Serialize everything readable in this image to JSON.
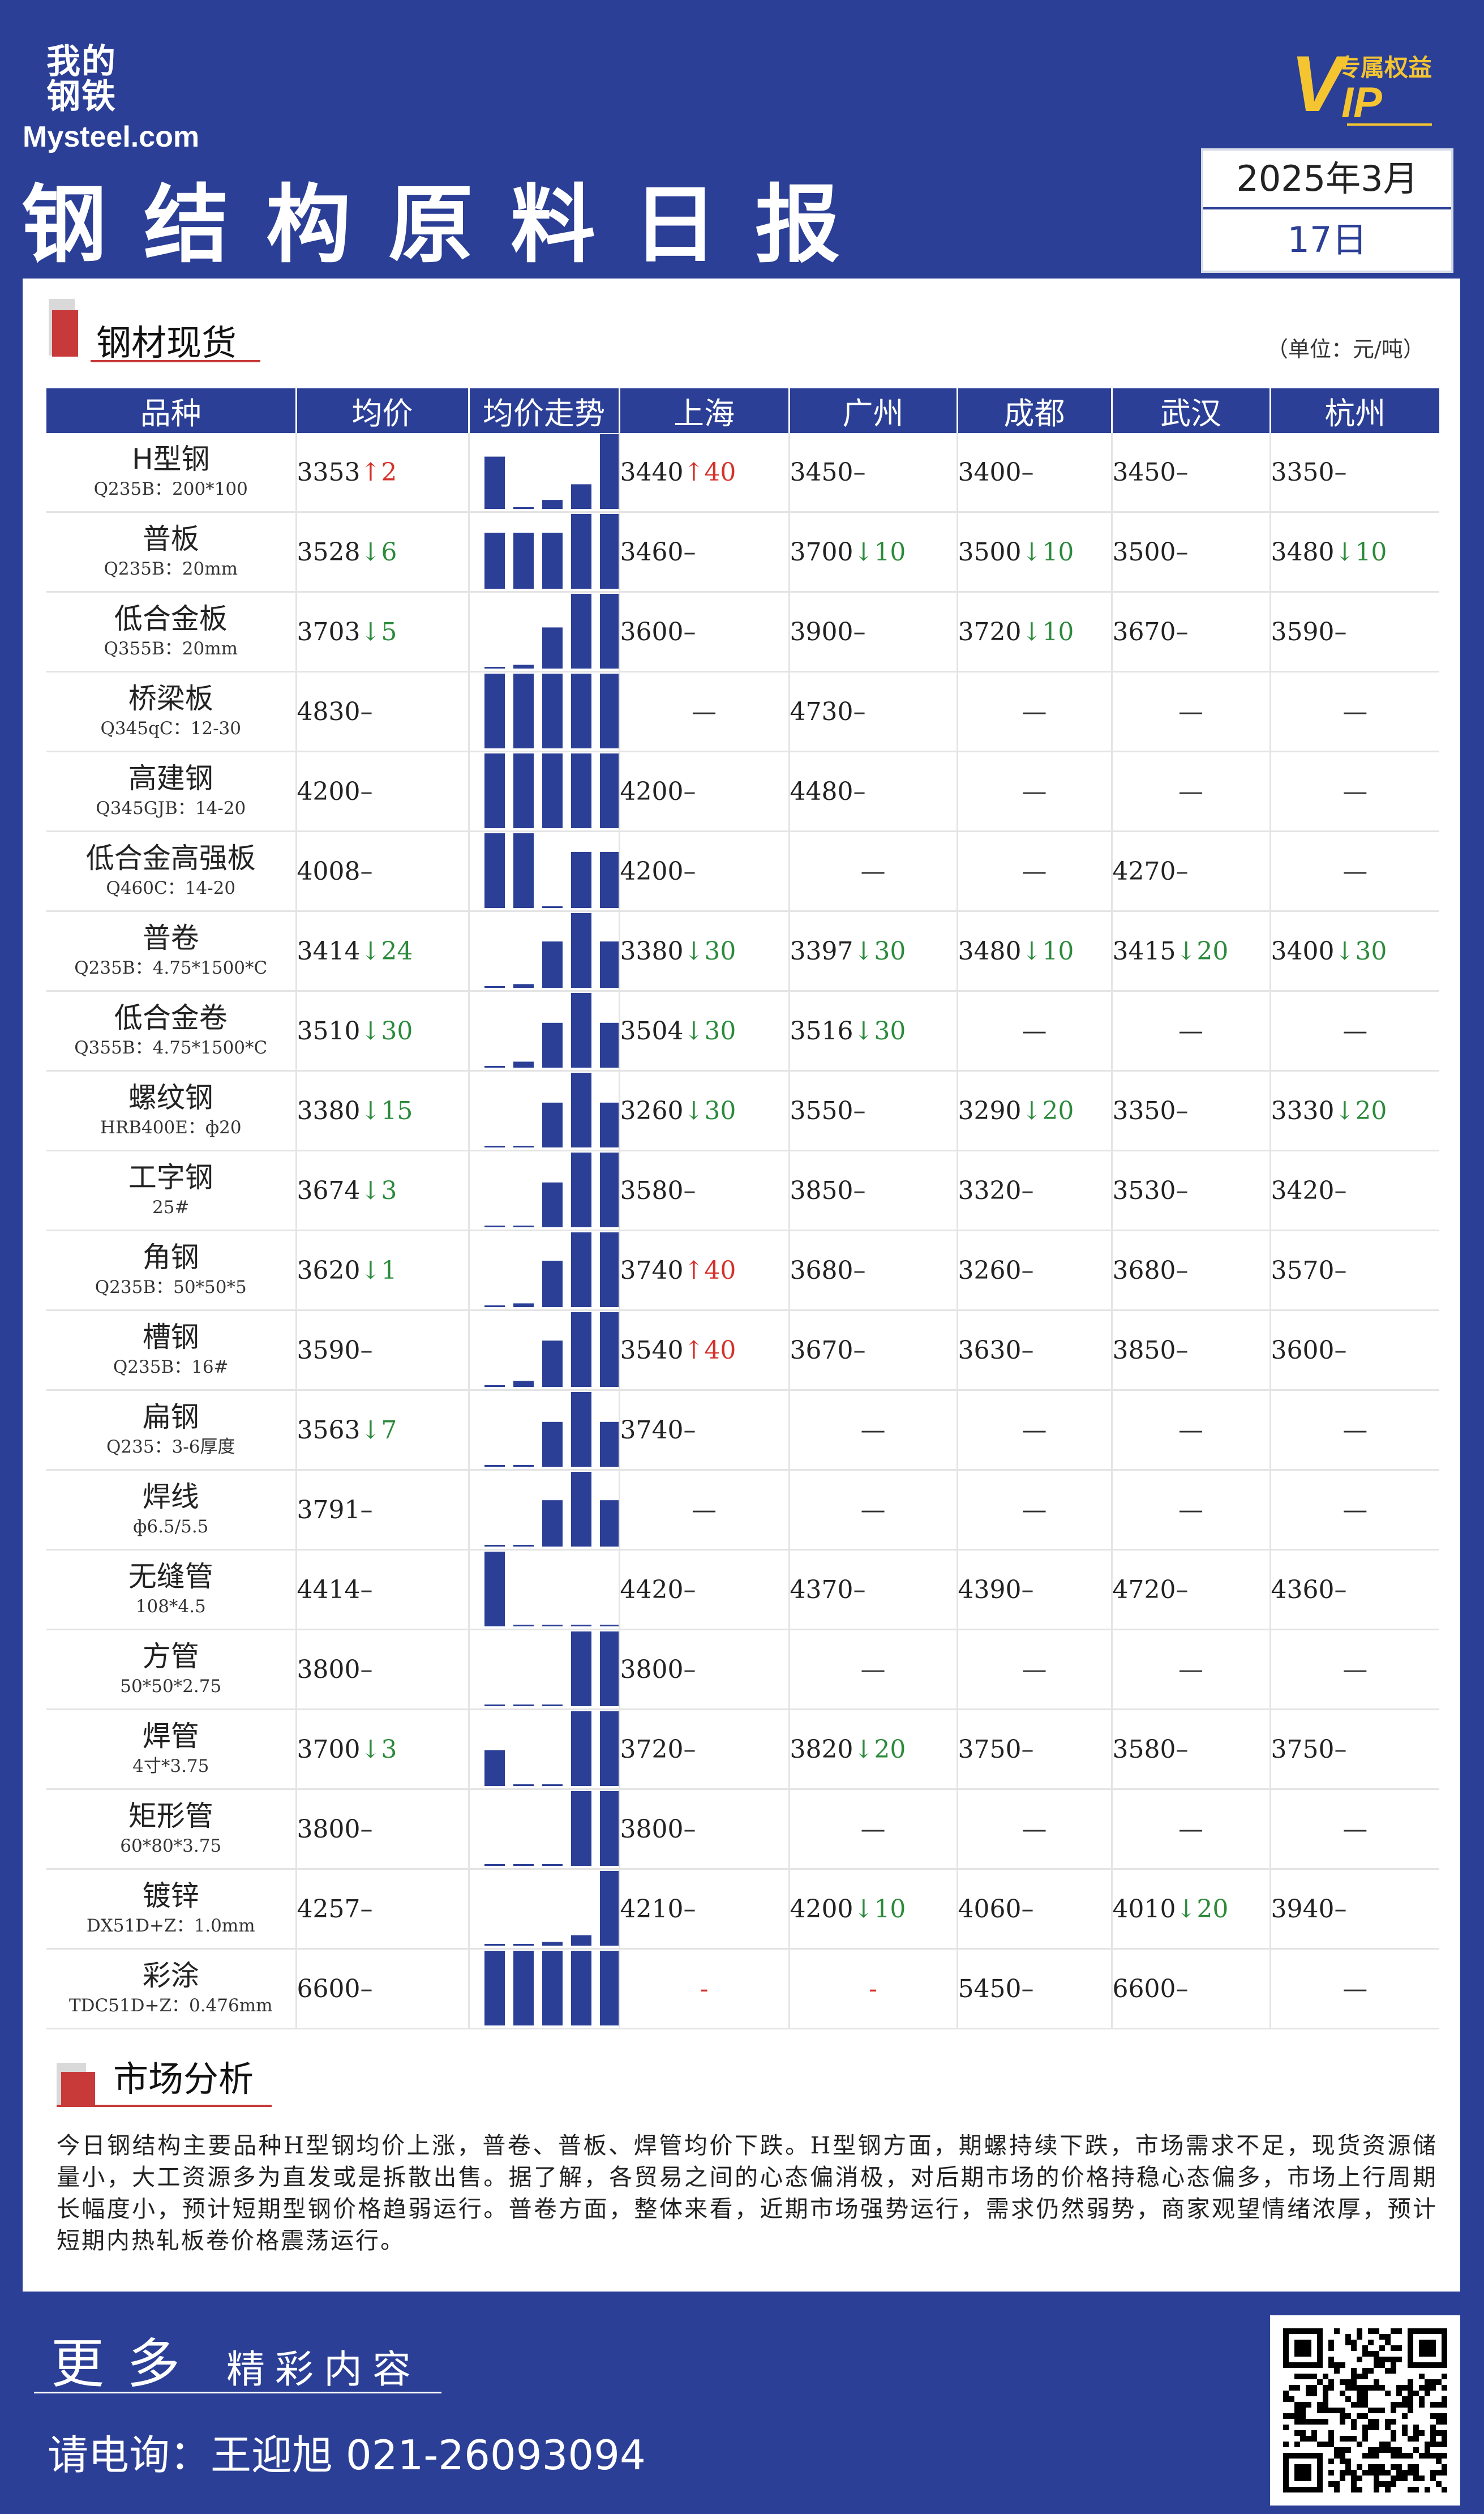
{
  "header": {
    "logo_cn": "我的钢铁",
    "logo_en": "Mysteel.com",
    "vip_letter": "V",
    "vip_ip": "IP",
    "vip_text": "专属权益",
    "title": "钢结构原料日报",
    "date_line1": "2025年3月",
    "date_line2": "17日"
  },
  "steel_section": {
    "title": "钢材现货",
    "unit": "（单位：元/吨）",
    "columns": [
      "品种",
      "均价",
      "均价走势",
      "上海",
      "广州",
      "成都",
      "武汉",
      "杭州"
    ],
    "rows": [
      {
        "name": "H型钢",
        "spec": "Q235B：200*100",
        "avg": {
          "v": "3353",
          "d": "up",
          "c": "2"
        },
        "trend": [
          0.7,
          0.02,
          0.12,
          0.33,
          1.0
        ],
        "cells": [
          {
            "v": "3440",
            "d": "up",
            "c": "40"
          },
          {
            "v": "3450",
            "d": "",
            "c": ""
          },
          {
            "v": "3400",
            "d": "",
            "c": ""
          },
          {
            "v": "3450",
            "d": "",
            "c": ""
          },
          {
            "v": "3350",
            "d": "",
            "c": ""
          }
        ]
      },
      {
        "name": "普板",
        "spec": "Q235B：20mm",
        "avg": {
          "v": "3528",
          "d": "down",
          "c": "6"
        },
        "trend": [
          0.75,
          0.75,
          0.75,
          1.0,
          1.0
        ],
        "cells": [
          {
            "v": "3460",
            "d": "",
            "c": ""
          },
          {
            "v": "3700",
            "d": "down",
            "c": "10"
          },
          {
            "v": "3500",
            "d": "down",
            "c": "10"
          },
          {
            "v": "3500",
            "d": "",
            "c": ""
          },
          {
            "v": "3480",
            "d": "down",
            "c": "10"
          }
        ]
      },
      {
        "name": "低合金板",
        "spec": "Q355B：20mm",
        "avg": {
          "v": "3703",
          "d": "down",
          "c": "5"
        },
        "trend": [
          0.02,
          0.05,
          0.55,
          1.0,
          1.0
        ],
        "cells": [
          {
            "v": "3600",
            "d": "",
            "c": ""
          },
          {
            "v": "3900",
            "d": "",
            "c": ""
          },
          {
            "v": "3720",
            "d": "down",
            "c": "10"
          },
          {
            "v": "3670",
            "d": "",
            "c": ""
          },
          {
            "v": "3590",
            "d": "",
            "c": ""
          }
        ]
      },
      {
        "name": "桥梁板",
        "spec": "Q345qC：12-30",
        "avg": {
          "v": "4830",
          "d": "",
          "c": ""
        },
        "trend": [
          1.0,
          1.0,
          1.0,
          1.0,
          1.0
        ],
        "cells": [
          {
            "v": "",
            "d": "",
            "c": ""
          },
          {
            "v": "4730",
            "d": "",
            "c": ""
          },
          {
            "v": "",
            "d": "",
            "c": ""
          },
          {
            "v": "",
            "d": "",
            "c": ""
          },
          {
            "v": "",
            "d": "",
            "c": ""
          }
        ]
      },
      {
        "name": "高建钢",
        "spec": "Q345GJB：14-20",
        "avg": {
          "v": "4200",
          "d": "",
          "c": ""
        },
        "trend": [
          1.0,
          1.0,
          1.0,
          1.0,
          1.0
        ],
        "cells": [
          {
            "v": "4200",
            "d": "",
            "c": ""
          },
          {
            "v": "4480",
            "d": "",
            "c": ""
          },
          {
            "v": "",
            "d": "",
            "c": ""
          },
          {
            "v": "",
            "d": "",
            "c": ""
          },
          {
            "v": "",
            "d": "",
            "c": ""
          }
        ]
      },
      {
        "name": "低合金高强板",
        "spec": "Q460C：14-20",
        "avg": {
          "v": "4008",
          "d": "",
          "c": ""
        },
        "trend": [
          1.0,
          1.0,
          0.02,
          0.75,
          0.75
        ],
        "cells": [
          {
            "v": "4200",
            "d": "",
            "c": ""
          },
          {
            "v": "",
            "d": "",
            "c": ""
          },
          {
            "v": "",
            "d": "",
            "c": ""
          },
          {
            "v": "4270",
            "d": "",
            "c": ""
          },
          {
            "v": "",
            "d": "",
            "c": ""
          }
        ]
      },
      {
        "name": "普卷",
        "spec": "Q235B：4.75*1500*C",
        "avg": {
          "v": "3414",
          "d": "down",
          "c": "24"
        },
        "trend": [
          0.02,
          0.05,
          0.62,
          1.0,
          0.62
        ],
        "cells": [
          {
            "v": "3380",
            "d": "down",
            "c": "30"
          },
          {
            "v": "3397",
            "d": "down",
            "c": "30"
          },
          {
            "v": "3480",
            "d": "down",
            "c": "10"
          },
          {
            "v": "3415",
            "d": "down",
            "c": "20"
          },
          {
            "v": "3400",
            "d": "down",
            "c": "30"
          }
        ]
      },
      {
        "name": "低合金卷",
        "spec": "Q355B：4.75*1500*C",
        "avg": {
          "v": "3510",
          "d": "down",
          "c": "30"
        },
        "trend": [
          0.02,
          0.08,
          0.6,
          1.0,
          0.6
        ],
        "cells": [
          {
            "v": "3504",
            "d": "down",
            "c": "30"
          },
          {
            "v": "3516",
            "d": "down",
            "c": "30"
          },
          {
            "v": "",
            "d": "",
            "c": ""
          },
          {
            "v": "",
            "d": "",
            "c": ""
          },
          {
            "v": "",
            "d": "",
            "c": ""
          }
        ]
      },
      {
        "name": "螺纹钢",
        "spec": "HRB400E：ф20",
        "avg": {
          "v": "3380",
          "d": "down",
          "c": "15"
        },
        "trend": [
          0.02,
          0.02,
          0.6,
          1.0,
          0.6
        ],
        "cells": [
          {
            "v": "3260",
            "d": "down",
            "c": "30"
          },
          {
            "v": "3550",
            "d": "",
            "c": ""
          },
          {
            "v": "3290",
            "d": "down",
            "c": "20"
          },
          {
            "v": "3350",
            "d": "",
            "c": ""
          },
          {
            "v": "3330",
            "d": "down",
            "c": "20"
          }
        ]
      },
      {
        "name": "工字钢",
        "spec": "25#",
        "avg": {
          "v": "3674",
          "d": "down",
          "c": "3"
        },
        "trend": [
          0.02,
          0.02,
          0.6,
          1.0,
          1.0
        ],
        "cells": [
          {
            "v": "3580",
            "d": "",
            "c": ""
          },
          {
            "v": "3850",
            "d": "",
            "c": ""
          },
          {
            "v": "3320",
            "d": "",
            "c": ""
          },
          {
            "v": "3530",
            "d": "",
            "c": ""
          },
          {
            "v": "3420",
            "d": "",
            "c": ""
          }
        ]
      },
      {
        "name": "角钢",
        "spec": "Q235B：50*50*5",
        "avg": {
          "v": "3620",
          "d": "down",
          "c": "1"
        },
        "trend": [
          0.02,
          0.05,
          0.62,
          1.0,
          1.0
        ],
        "cells": [
          {
            "v": "3740",
            "d": "up",
            "c": "40"
          },
          {
            "v": "3680",
            "d": "",
            "c": ""
          },
          {
            "v": "3260",
            "d": "",
            "c": ""
          },
          {
            "v": "3680",
            "d": "",
            "c": ""
          },
          {
            "v": "3570",
            "d": "",
            "c": ""
          }
        ]
      },
      {
        "name": "槽钢",
        "spec": "Q235B：16#",
        "avg": {
          "v": "3590",
          "d": "",
          "c": ""
        },
        "trend": [
          0.02,
          0.08,
          0.62,
          1.0,
          1.0
        ],
        "cells": [
          {
            "v": "3540",
            "d": "up",
            "c": "40"
          },
          {
            "v": "3670",
            "d": "",
            "c": ""
          },
          {
            "v": "3630",
            "d": "",
            "c": ""
          },
          {
            "v": "3850",
            "d": "",
            "c": ""
          },
          {
            "v": "3600",
            "d": "",
            "c": ""
          }
        ]
      },
      {
        "name": "扁钢",
        "spec": "Q235：3-6厚度",
        "avg": {
          "v": "3563",
          "d": "down",
          "c": "7"
        },
        "trend": [
          0.02,
          0.02,
          0.6,
          1.0,
          0.6
        ],
        "cells": [
          {
            "v": "3740",
            "d": "",
            "c": ""
          },
          {
            "v": "",
            "d": "",
            "c": ""
          },
          {
            "v": "",
            "d": "",
            "c": ""
          },
          {
            "v": "",
            "d": "",
            "c": ""
          },
          {
            "v": "",
            "d": "",
            "c": ""
          }
        ]
      },
      {
        "name": "焊线",
        "spec": "ф6.5/5.5",
        "avg": {
          "v": "3791",
          "d": "",
          "c": ""
        },
        "trend": [
          0.02,
          0.02,
          0.62,
          1.0,
          0.62
        ],
        "cells": [
          {
            "v": "",
            "d": "",
            "c": ""
          },
          {
            "v": "",
            "d": "",
            "c": ""
          },
          {
            "v": "",
            "d": "",
            "c": ""
          },
          {
            "v": "",
            "d": "",
            "c": ""
          },
          {
            "v": "",
            "d": "",
            "c": ""
          }
        ]
      },
      {
        "name": "无缝管",
        "spec": "108*4.5",
        "avg": {
          "v": "4414",
          "d": "",
          "c": ""
        },
        "trend": [
          1.0,
          0.02,
          0.02,
          0.02,
          0.02
        ],
        "cells": [
          {
            "v": "4420",
            "d": "",
            "c": ""
          },
          {
            "v": "4370",
            "d": "",
            "c": ""
          },
          {
            "v": "4390",
            "d": "",
            "c": ""
          },
          {
            "v": "4720",
            "d": "",
            "c": ""
          },
          {
            "v": "4360",
            "d": "",
            "c": ""
          }
        ]
      },
      {
        "name": "方管",
        "spec": "50*50*2.75",
        "avg": {
          "v": "3800",
          "d": "",
          "c": ""
        },
        "trend": [
          0.02,
          0.02,
          0.02,
          1.0,
          1.0
        ],
        "cells": [
          {
            "v": "3800",
            "d": "",
            "c": ""
          },
          {
            "v": "",
            "d": "",
            "c": ""
          },
          {
            "v": "",
            "d": "",
            "c": ""
          },
          {
            "v": "",
            "d": "",
            "c": ""
          },
          {
            "v": "",
            "d": "",
            "c": ""
          }
        ]
      },
      {
        "name": "焊管",
        "spec": "4寸*3.75",
        "avg": {
          "v": "3700",
          "d": "down",
          "c": "3"
        },
        "trend": [
          0.48,
          0.02,
          0.02,
          1.0,
          1.0
        ],
        "cells": [
          {
            "v": "3720",
            "d": "",
            "c": ""
          },
          {
            "v": "3820",
            "d": "down",
            "c": "20"
          },
          {
            "v": "3750",
            "d": "",
            "c": ""
          },
          {
            "v": "3580",
            "d": "",
            "c": ""
          },
          {
            "v": "3750",
            "d": "",
            "c": ""
          }
        ]
      },
      {
        "name": "矩形管",
        "spec": "60*80*3.75",
        "avg": {
          "v": "3800",
          "d": "",
          "c": ""
        },
        "trend": [
          0.02,
          0.02,
          0.02,
          1.0,
          1.0
        ],
        "cells": [
          {
            "v": "3800",
            "d": "",
            "c": ""
          },
          {
            "v": "",
            "d": "",
            "c": ""
          },
          {
            "v": "",
            "d": "",
            "c": ""
          },
          {
            "v": "",
            "d": "",
            "c": ""
          },
          {
            "v": "",
            "d": "",
            "c": ""
          }
        ]
      },
      {
        "name": "镀锌",
        "spec": "DX51D+Z：1.0mm",
        "avg": {
          "v": "4257",
          "d": "",
          "c": ""
        },
        "trend": [
          0.02,
          0.02,
          0.05,
          0.14,
          1.0
        ],
        "cells": [
          {
            "v": "4210",
            "d": "",
            "c": ""
          },
          {
            "v": "4200",
            "d": "down",
            "c": "10"
          },
          {
            "v": "4060",
            "d": "",
            "c": ""
          },
          {
            "v": "4010",
            "d": "down",
            "c": "20"
          },
          {
            "v": "3940",
            "d": "",
            "c": ""
          }
        ]
      },
      {
        "name": "彩涂",
        "spec": "TDC51D+Z：0.476mm",
        "avg": {
          "v": "6600",
          "d": "",
          "c": ""
        },
        "trend": [
          1.0,
          1.0,
          1.0,
          1.0,
          1.0
        ],
        "cells": [
          {
            "v": "",
            "d": "redDash",
            "c": ""
          },
          {
            "v": "",
            "d": "redDash",
            "c": ""
          },
          {
            "v": "5450",
            "d": "",
            "c": ""
          },
          {
            "v": "6600",
            "d": "",
            "c": ""
          },
          {
            "v": "",
            "d": "",
            "c": ""
          }
        ]
      }
    ]
  },
  "analysis": {
    "title": "市场分析",
    "text": "今日钢结构主要品种H型钢均价上涨，普卷、普板、焊管均价下跌。H型钢方面，期螺持续下跌，市场需求不足，现货资源储量小，大工资源多为直发或是拆散出售。据了解，各贸易之间的心态偏消极，对后期市场的价格持稳心态偏多，市场上行周期长幅度小，预计短期型钢价格趋弱运行。普卷方面，整体来看，近期市场强势运行，需求仍然弱势，商家观望情绪浓厚，预计短期内热轧板卷价格震荡运行。"
  },
  "footer": {
    "more_big": "更多",
    "more_small": "精彩内容",
    "phone": "请电询：王迎旭  021-26093094"
  },
  "colors": {
    "brand": "#2b3f96",
    "up": "#d4322b",
    "down": "#2c8a3c",
    "accent": "#c83a3a",
    "vip": "#f4c531"
  },
  "icons": [
    "arrow-up-icon",
    "arrow-down-icon",
    "qr-code-icon",
    "section-marker-icon"
  ]
}
